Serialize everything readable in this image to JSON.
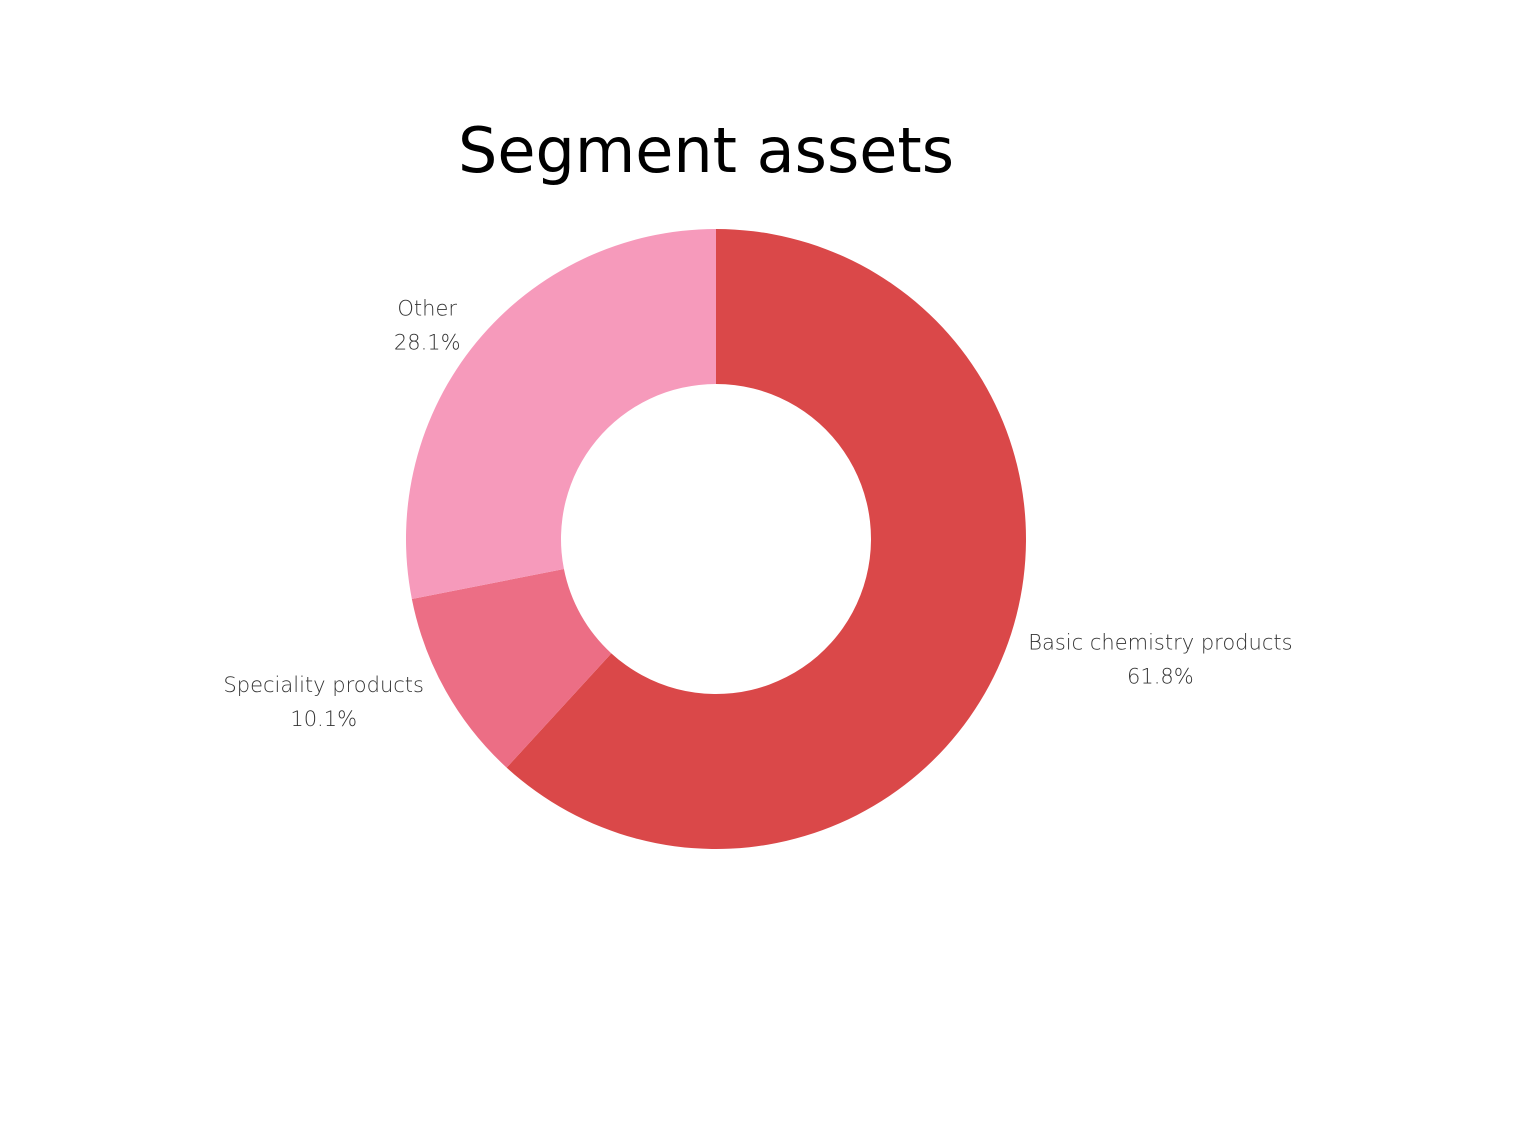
{
  "chart_data": {
    "type": "pie",
    "title": "Segment assets",
    "categories": [
      "Basic chemistry products",
      "Speciality products",
      "Other"
    ],
    "values": [
      61.8,
      10.1,
      28.1
    ],
    "value_labels": [
      "61.8%",
      "10.1%",
      "28.1%"
    ],
    "colors": [
      "#da4849",
      "#ec6e85",
      "#f69abb"
    ],
    "donut": true
  }
}
